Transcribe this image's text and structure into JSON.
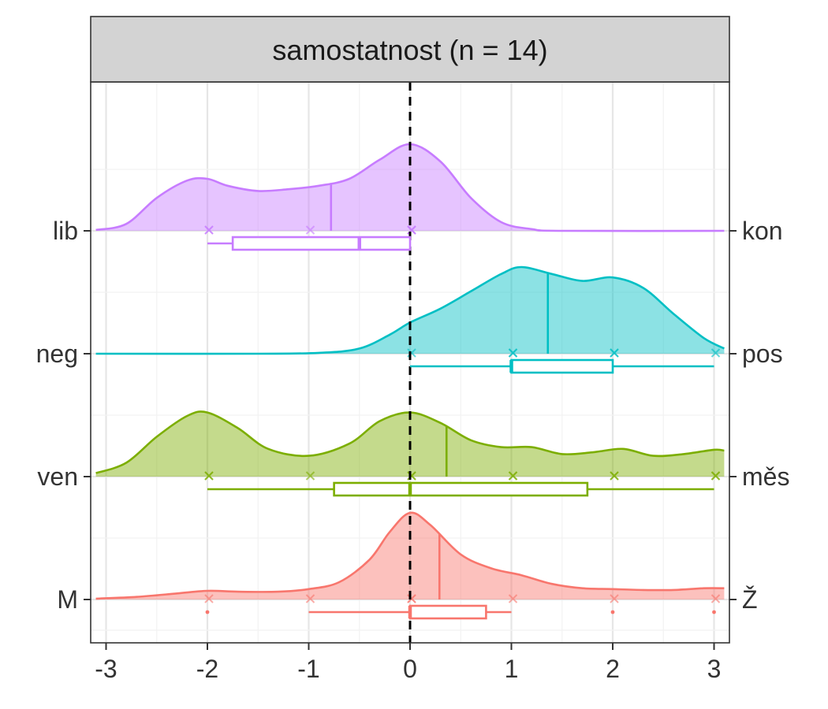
{
  "chart_data": {
    "type": "raincloud",
    "title": "samostatnost (n = 14)",
    "xlabel": "",
    "ylabel": "",
    "xlim": [
      -3.1,
      3.1
    ],
    "x_ticks": [
      -3,
      -2,
      -1,
      0,
      1,
      2,
      3
    ],
    "x_tick_labels": [
      "-3",
      "-2",
      "-1",
      "0",
      "1",
      "2",
      "3"
    ],
    "reference_line_x": 0,
    "grid": true,
    "legend": "none",
    "series": [
      {
        "left_label": "lib",
        "right_label": "kon",
        "color": "#C77CFF",
        "points": [
          -2,
          -2,
          -1,
          0,
          0,
          0
        ],
        "mean": -0.78,
        "box": {
          "min": -2,
          "q1": -1.75,
          "median": -0.5,
          "q3": 0,
          "max": 0
        },
        "outliers": [],
        "density": [
          [
            -3.1,
            0.01
          ],
          [
            -2.8,
            0.08
          ],
          [
            -2.5,
            0.38
          ],
          [
            -2.2,
            0.58
          ],
          [
            -2.0,
            0.6
          ],
          [
            -1.8,
            0.52
          ],
          [
            -1.5,
            0.46
          ],
          [
            -1.2,
            0.48
          ],
          [
            -0.9,
            0.52
          ],
          [
            -0.6,
            0.6
          ],
          [
            -0.3,
            0.82
          ],
          [
            0.0,
            1.0
          ],
          [
            0.3,
            0.8
          ],
          [
            0.6,
            0.38
          ],
          [
            0.9,
            0.1
          ],
          [
            1.2,
            0.02
          ],
          [
            1.5,
            0.0
          ],
          [
            3.1,
            0.0
          ]
        ]
      },
      {
        "left_label": "neg",
        "right_label": "pos",
        "color": "#00BFC4",
        "points": [
          0,
          1,
          1,
          2,
          2,
          3
        ],
        "mean": 1.36,
        "box": {
          "min": 0,
          "q1": 1,
          "median": 1,
          "q3": 2,
          "max": 3
        },
        "outliers": [],
        "density": [
          [
            -3.1,
            0.0
          ],
          [
            -1.5,
            0.0
          ],
          [
            -0.9,
            0.01
          ],
          [
            -0.5,
            0.06
          ],
          [
            -0.2,
            0.22
          ],
          [
            0.0,
            0.36
          ],
          [
            0.3,
            0.52
          ],
          [
            0.6,
            0.72
          ],
          [
            0.9,
            0.92
          ],
          [
            1.1,
            1.0
          ],
          [
            1.4,
            0.92
          ],
          [
            1.7,
            0.84
          ],
          [
            2.0,
            0.88
          ],
          [
            2.3,
            0.76
          ],
          [
            2.6,
            0.46
          ],
          [
            2.9,
            0.18
          ],
          [
            3.1,
            0.06
          ]
        ]
      },
      {
        "left_label": "ven",
        "right_label": "měs",
        "color": "#7CAE00",
        "points": [
          -2,
          -2,
          -1,
          0,
          0,
          1,
          1,
          2,
          2,
          3,
          3
        ],
        "mean": 0.36,
        "box": {
          "min": -2,
          "q1": -0.75,
          "median": 0,
          "q3": 1.75,
          "max": 3
        },
        "outliers": [],
        "density": [
          [
            -3.1,
            0.04
          ],
          [
            -2.8,
            0.16
          ],
          [
            -2.5,
            0.46
          ],
          [
            -2.2,
            0.7
          ],
          [
            -2.0,
            0.74
          ],
          [
            -1.7,
            0.56
          ],
          [
            -1.4,
            0.32
          ],
          [
            -1.0,
            0.24
          ],
          [
            -0.6,
            0.38
          ],
          [
            -0.3,
            0.64
          ],
          [
            0.0,
            0.74
          ],
          [
            0.3,
            0.62
          ],
          [
            0.6,
            0.42
          ],
          [
            0.9,
            0.34
          ],
          [
            1.2,
            0.34
          ],
          [
            1.5,
            0.26
          ],
          [
            1.8,
            0.28
          ],
          [
            2.1,
            0.32
          ],
          [
            2.4,
            0.24
          ],
          [
            2.7,
            0.26
          ],
          [
            3.0,
            0.31
          ],
          [
            3.1,
            0.3
          ]
        ]
      },
      {
        "left_label": "M",
        "right_label": "Ž",
        "color": "#F8766D",
        "points": [
          -2,
          -1,
          0,
          0,
          1,
          2,
          3
        ],
        "mean": 0.29,
        "box": {
          "min": -1,
          "q1": 0,
          "median": 0,
          "q3": 0.75,
          "max": 1
        },
        "outliers": [
          -2,
          2,
          3
        ],
        "density": [
          [
            -3.1,
            0.01
          ],
          [
            -2.7,
            0.03
          ],
          [
            -2.3,
            0.07
          ],
          [
            -2.0,
            0.1
          ],
          [
            -1.7,
            0.09
          ],
          [
            -1.3,
            0.09
          ],
          [
            -1.0,
            0.12
          ],
          [
            -0.7,
            0.2
          ],
          [
            -0.4,
            0.46
          ],
          [
            -0.2,
            0.78
          ],
          [
            0.0,
            1.0
          ],
          [
            0.2,
            0.86
          ],
          [
            0.5,
            0.52
          ],
          [
            0.8,
            0.36
          ],
          [
            1.1,
            0.28
          ],
          [
            1.4,
            0.18
          ],
          [
            1.7,
            0.13
          ],
          [
            2.0,
            0.12
          ],
          [
            2.3,
            0.11
          ],
          [
            2.6,
            0.11
          ],
          [
            2.9,
            0.13
          ],
          [
            3.1,
            0.13
          ]
        ]
      }
    ]
  }
}
